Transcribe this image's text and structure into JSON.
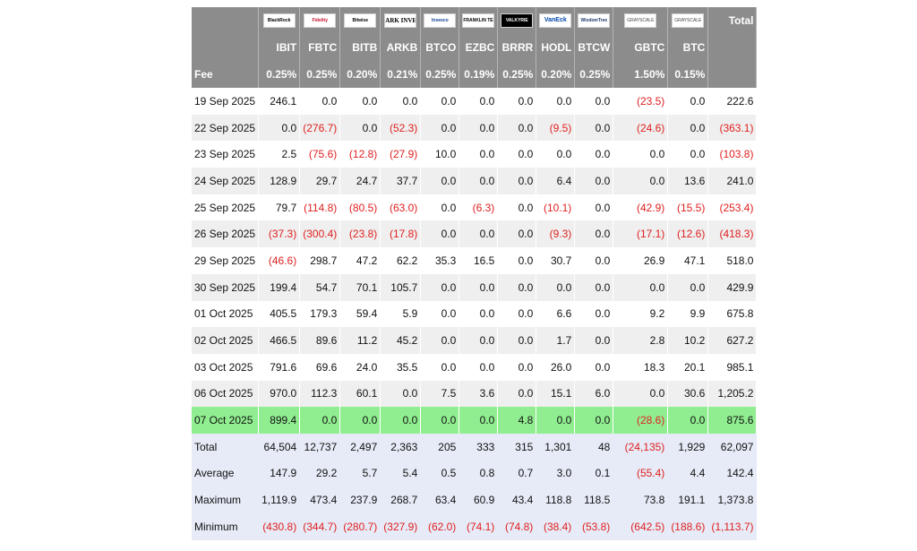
{
  "columns": [
    {
      "ticker": "IBIT",
      "logo": "BlackRock",
      "fee": "0.25%"
    },
    {
      "ticker": "FBTC",
      "logo": "Fidelity",
      "fee": "0.25%"
    },
    {
      "ticker": "BITB",
      "logo": "Bitwise",
      "fee": "0.20%"
    },
    {
      "ticker": "ARKB",
      "logo": "ARK INVEST",
      "fee": "0.21%"
    },
    {
      "ticker": "BTCO",
      "logo": "Invesco",
      "fee": "0.25%"
    },
    {
      "ticker": "EZBC",
      "logo": "FRANKLIN TEMPLETON",
      "fee": "0.19%"
    },
    {
      "ticker": "BRRR",
      "logo": "VALKYRIE",
      "fee": "0.25%"
    },
    {
      "ticker": "HODL",
      "logo": "VanEck",
      "fee": "0.20%"
    },
    {
      "ticker": "BTCW",
      "logo": "WisdomTree",
      "fee": "0.25%"
    },
    {
      "ticker": "GBTC",
      "logo": "GRAYSCALE",
      "fee": "1.50%"
    },
    {
      "ticker": "BTC",
      "logo": "GRAYSCALE",
      "fee": "0.15%"
    }
  ],
  "total_header": "Total",
  "fee_label": "Fee",
  "rows": [
    {
      "date": "19 Sep 2025",
      "values": [
        "246.1",
        "0.0",
        "0.0",
        "0.0",
        "0.0",
        "0.0",
        "0.0",
        "0.0",
        "0.0",
        "(23.5)",
        "0.0"
      ],
      "total": "222.6"
    },
    {
      "date": "22 Sep 2025",
      "values": [
        "0.0",
        "(276.7)",
        "0.0",
        "(52.3)",
        "0.0",
        "0.0",
        "0.0",
        "(9.5)",
        "0.0",
        "(24.6)",
        "0.0"
      ],
      "total": "(363.1)"
    },
    {
      "date": "23 Sep 2025",
      "values": [
        "2.5",
        "(75.6)",
        "(12.8)",
        "(27.9)",
        "10.0",
        "0.0",
        "0.0",
        "0.0",
        "0.0",
        "0.0",
        "0.0"
      ],
      "total": "(103.8)"
    },
    {
      "date": "24 Sep 2025",
      "values": [
        "128.9",
        "29.7",
        "24.7",
        "37.7",
        "0.0",
        "0.0",
        "0.0",
        "6.4",
        "0.0",
        "0.0",
        "13.6"
      ],
      "total": "241.0"
    },
    {
      "date": "25 Sep 2025",
      "values": [
        "79.7",
        "(114.8)",
        "(80.5)",
        "(63.0)",
        "0.0",
        "(6.3)",
        "0.0",
        "(10.1)",
        "0.0",
        "(42.9)",
        "(15.5)"
      ],
      "total": "(253.4)"
    },
    {
      "date": "26 Sep 2025",
      "values": [
        "(37.3)",
        "(300.4)",
        "(23.8)",
        "(17.8)",
        "0.0",
        "0.0",
        "0.0",
        "(9.3)",
        "0.0",
        "(17.1)",
        "(12.6)"
      ],
      "total": "(418.3)"
    },
    {
      "date": "29 Sep 2025",
      "values": [
        "(46.6)",
        "298.7",
        "47.2",
        "62.2",
        "35.3",
        "16.5",
        "0.0",
        "30.7",
        "0.0",
        "26.9",
        "47.1"
      ],
      "total": "518.0"
    },
    {
      "date": "30 Sep 2025",
      "values": [
        "199.4",
        "54.7",
        "70.1",
        "105.7",
        "0.0",
        "0.0",
        "0.0",
        "0.0",
        "0.0",
        "0.0",
        "0.0"
      ],
      "total": "429.9"
    },
    {
      "date": "01 Oct 2025",
      "values": [
        "405.5",
        "179.3",
        "59.4",
        "5.9",
        "0.0",
        "0.0",
        "0.0",
        "6.6",
        "0.0",
        "9.2",
        "9.9"
      ],
      "total": "675.8"
    },
    {
      "date": "02 Oct 2025",
      "values": [
        "466.5",
        "89.6",
        "11.2",
        "45.2",
        "0.0",
        "0.0",
        "0.0",
        "1.7",
        "0.0",
        "2.8",
        "10.2"
      ],
      "total": "627.2"
    },
    {
      "date": "03 Oct 2025",
      "values": [
        "791.6",
        "69.6",
        "24.0",
        "35.5",
        "0.0",
        "0.0",
        "0.0",
        "26.0",
        "0.0",
        "18.3",
        "20.1"
      ],
      "total": "985.1"
    },
    {
      "date": "06 Oct 2025",
      "values": [
        "970.0",
        "112.3",
        "60.1",
        "0.0",
        "7.5",
        "3.6",
        "0.0",
        "15.1",
        "6.0",
        "0.0",
        "30.6"
      ],
      "total": "1,205.2"
    },
    {
      "date": "07 Oct 2025",
      "values": [
        "899.4",
        "0.0",
        "0.0",
        "0.0",
        "0.0",
        "0.0",
        "4.8",
        "0.0",
        "0.0",
        "(28.6)",
        "0.0"
      ],
      "total": "875.6",
      "highlight": true
    }
  ],
  "stats": [
    {
      "label": "Total",
      "values": [
        "64,504",
        "12,737",
        "2,497",
        "2,363",
        "205",
        "333",
        "315",
        "1,301",
        "48",
        "(24,135)",
        "1,929"
      ],
      "total": "62,097"
    },
    {
      "label": "Average",
      "values": [
        "147.9",
        "29.2",
        "5.7",
        "5.4",
        "0.5",
        "0.8",
        "0.7",
        "3.0",
        "0.1",
        "(55.4)",
        "4.4"
      ],
      "total": "142.4"
    },
    {
      "label": "Maximum",
      "values": [
        "1,119.9",
        "473.4",
        "237.9",
        "268.7",
        "63.4",
        "60.9",
        "43.4",
        "118.8",
        "118.5",
        "73.8",
        "191.1"
      ],
      "total": "1,373.8"
    },
    {
      "label": "Minimum",
      "values": [
        "(430.8)",
        "(344.7)",
        "(280.7)",
        "(327.9)",
        "(62.0)",
        "(74.1)",
        "(74.8)",
        "(38.4)",
        "(53.8)",
        "(642.5)",
        "(188.6)"
      ],
      "total": "(1,113.7)"
    }
  ],
  "colors": {
    "header_bg": "#8c8c8c",
    "negative": "#e02020",
    "highlight": "#90ee90",
    "stats_bg": "#e6ebf7",
    "stripe": "#efefef"
  }
}
